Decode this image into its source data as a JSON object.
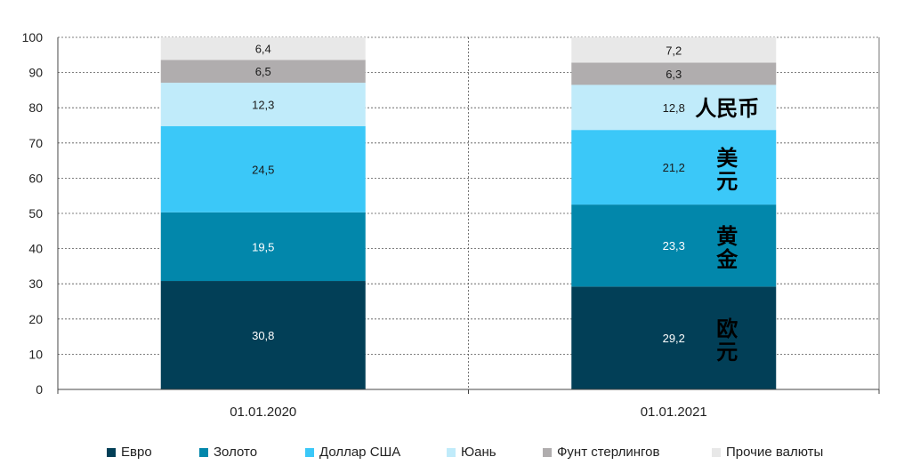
{
  "colors": {
    "euro": "#023F57",
    "gold": "#0287AB",
    "usd": "#3BC8F8",
    "yuan": "#C0EBFA",
    "gbp": "#B0ADAE",
    "other": "#E8E8E8"
  },
  "chart_data": {
    "type": "bar",
    "stacked": true,
    "categories": [
      "01.01.2020",
      "01.01.2021"
    ],
    "ylim": [
      0,
      100
    ],
    "yticks": [
      "0",
      "10",
      "20",
      "30",
      "40",
      "50",
      "60",
      "70",
      "80",
      "90",
      "100"
    ],
    "grid": true,
    "legend_position": "bottom",
    "series": [
      {
        "key": "euro",
        "name": "Евро",
        "values": [
          30.8,
          29.2
        ],
        "labels": [
          "30,8",
          "29,2"
        ]
      },
      {
        "key": "gold",
        "name": "Золото",
        "values": [
          19.5,
          23.3
        ],
        "labels": [
          "19,5",
          "23,3"
        ]
      },
      {
        "key": "usd",
        "name": "Доллар США",
        "values": [
          24.5,
          21.2
        ],
        "labels": [
          "24,5",
          "21,2"
        ]
      },
      {
        "key": "yuan",
        "name": "Юань",
        "values": [
          12.3,
          12.8
        ],
        "labels": [
          "12,3",
          "12,8"
        ]
      },
      {
        "key": "gbp",
        "name": "Фунт стерлингов",
        "values": [
          6.5,
          6.3
        ],
        "labels": [
          "6,5",
          "6,3"
        ]
      },
      {
        "key": "other",
        "name": "Прочие валюты",
        "values": [
          6.4,
          7.2
        ],
        "labels": [
          "6,4",
          "7,2"
        ]
      }
    ],
    "annotations": [
      {
        "series": "yuan",
        "text": "人民币"
      },
      {
        "series": "usd",
        "text": "美元"
      },
      {
        "series": "gold",
        "text": "黄金"
      },
      {
        "series": "euro",
        "text": "欧元"
      }
    ]
  }
}
